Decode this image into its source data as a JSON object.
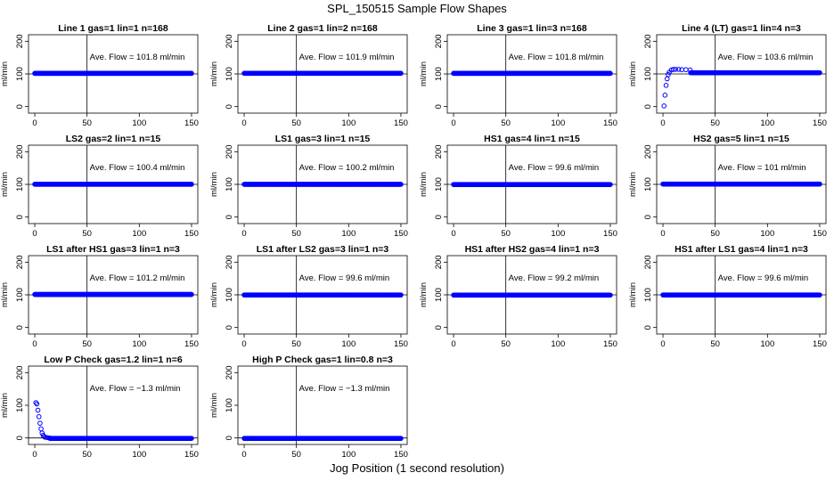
{
  "title": "SPL_150515  Sample Flow Shapes",
  "xlabel": "Jog Position (1 second resolution)",
  "ylabel": "ml/min",
  "colors": {
    "points": "#0000ff",
    "axes": "#000000"
  },
  "chart_data": [
    {
      "type": "scatter",
      "title": "Line 1 gas=1 lin=1 n=168",
      "annotation": "Ave. Flow = 101.8  ml/min",
      "mean": 101.8,
      "xlim": [
        0,
        150
      ],
      "ylim": [
        -20,
        220
      ],
      "xticks": [
        0,
        50,
        100,
        150
      ],
      "yticks": [
        0,
        100,
        200
      ],
      "refline_x": 50,
      "hline_y": 100,
      "start": []
    },
    {
      "type": "scatter",
      "title": "Line 2 gas=1 lin=2 n=168",
      "annotation": "Ave. Flow = 101.9  ml/min",
      "mean": 101.9,
      "xlim": [
        0,
        150
      ],
      "ylim": [
        -20,
        220
      ],
      "xticks": [
        0,
        50,
        100,
        150
      ],
      "yticks": [
        0,
        100,
        200
      ],
      "refline_x": 50,
      "hline_y": 100,
      "start": []
    },
    {
      "type": "scatter",
      "title": "Line 3 gas=1 lin=3 n=168",
      "annotation": "Ave. Flow = 101.8  ml/min",
      "mean": 101.8,
      "xlim": [
        0,
        150
      ],
      "ylim": [
        -20,
        220
      ],
      "xticks": [
        0,
        50,
        100,
        150
      ],
      "yticks": [
        0,
        100,
        200
      ],
      "refline_x": 50,
      "hline_y": 100,
      "start": []
    },
    {
      "type": "scatter",
      "title": "Line 4 (LT) gas=1 lin=4 n=3",
      "annotation": "Ave. Flow = 103.6  ml/min",
      "mean": 103.6,
      "xlim": [
        0,
        150
      ],
      "ylim": [
        -20,
        220
      ],
      "xticks": [
        0,
        50,
        100,
        150
      ],
      "yticks": [
        0,
        100,
        200
      ],
      "refline_x": 50,
      "hline_y": 100,
      "start": [
        [
          1,
          2
        ],
        [
          2,
          35
        ],
        [
          3,
          65
        ],
        [
          4,
          85
        ],
        [
          5,
          98
        ],
        [
          6,
          105
        ],
        [
          8,
          112
        ],
        [
          10,
          114
        ],
        [
          12,
          114
        ],
        [
          15,
          114
        ],
        [
          18,
          113
        ],
        [
          22,
          113
        ],
        [
          26,
          112
        ]
      ]
    },
    {
      "type": "scatter",
      "title": "LS2 gas=2 lin=1 n=15",
      "annotation": "Ave. Flow = 100.4  ml/min",
      "mean": 100.4,
      "xlim": [
        0,
        150
      ],
      "ylim": [
        -20,
        220
      ],
      "xticks": [
        0,
        50,
        100,
        150
      ],
      "yticks": [
        0,
        100,
        200
      ],
      "refline_x": 50,
      "hline_y": 100,
      "start": []
    },
    {
      "type": "scatter",
      "title": "LS1 gas=3 lin=1 n=15",
      "annotation": "Ave. Flow = 100.2  ml/min",
      "mean": 100.2,
      "xlim": [
        0,
        150
      ],
      "ylim": [
        -20,
        220
      ],
      "xticks": [
        0,
        50,
        100,
        150
      ],
      "yticks": [
        0,
        100,
        200
      ],
      "refline_x": 50,
      "hline_y": 100,
      "start": []
    },
    {
      "type": "scatter",
      "title": "HS1 gas=4 lin=1 n=15",
      "annotation": "Ave. Flow = 99.6  ml/min",
      "mean": 99.6,
      "xlim": [
        0,
        150
      ],
      "ylim": [
        -20,
        220
      ],
      "xticks": [
        0,
        50,
        100,
        150
      ],
      "yticks": [
        0,
        100,
        200
      ],
      "refline_x": 50,
      "hline_y": 100,
      "start": []
    },
    {
      "type": "scatter",
      "title": "HS2 gas=5 lin=1 n=15",
      "annotation": "Ave. Flow = 101  ml/min",
      "mean": 101,
      "xlim": [
        0,
        150
      ],
      "ylim": [
        -20,
        220
      ],
      "xticks": [
        0,
        50,
        100,
        150
      ],
      "yticks": [
        0,
        100,
        200
      ],
      "refline_x": 50,
      "hline_y": 100,
      "start": []
    },
    {
      "type": "scatter",
      "title": "LS1 after HS1 gas=3 lin=1 n=3",
      "annotation": "Ave. Flow = 101.2  ml/min",
      "mean": 101.2,
      "xlim": [
        0,
        150
      ],
      "ylim": [
        -20,
        220
      ],
      "xticks": [
        0,
        50,
        100,
        150
      ],
      "yticks": [
        0,
        100,
        200
      ],
      "refline_x": 50,
      "hline_y": 100,
      "start": []
    },
    {
      "type": "scatter",
      "title": "LS1 after LS2 gas=3 lin=1 n=3",
      "annotation": "Ave. Flow = 99.6  ml/min",
      "mean": 99.6,
      "xlim": [
        0,
        150
      ],
      "ylim": [
        -20,
        220
      ],
      "xticks": [
        0,
        50,
        100,
        150
      ],
      "yticks": [
        0,
        100,
        200
      ],
      "refline_x": 50,
      "hline_y": 100,
      "start": []
    },
    {
      "type": "scatter",
      "title": "HS1 after HS2 gas=4 lin=1 n=3",
      "annotation": "Ave. Flow = 99.2  ml/min",
      "mean": 99.2,
      "xlim": [
        0,
        150
      ],
      "ylim": [
        -20,
        220
      ],
      "xticks": [
        0,
        50,
        100,
        150
      ],
      "yticks": [
        0,
        100,
        200
      ],
      "refline_x": 50,
      "hline_y": 100,
      "start": []
    },
    {
      "type": "scatter",
      "title": "HS1 after LS1 gas=4 lin=1 n=3",
      "annotation": "Ave. Flow = 99.6  ml/min",
      "mean": 99.6,
      "xlim": [
        0,
        150
      ],
      "ylim": [
        -20,
        220
      ],
      "xticks": [
        0,
        50,
        100,
        150
      ],
      "yticks": [
        0,
        100,
        200
      ],
      "refline_x": 50,
      "hline_y": 100,
      "start": []
    },
    {
      "type": "scatter",
      "title": "Low P Check gas=1.2 lin=1 n=6",
      "annotation": "Ave. Flow = −1.3  ml/min",
      "mean": -1.3,
      "xlim": [
        0,
        150
      ],
      "ylim": [
        -20,
        220
      ],
      "xticks": [
        0,
        50,
        100,
        150
      ],
      "yticks": [
        0,
        100,
        200
      ],
      "refline_x": 50,
      "hline_y": 0,
      "start": [
        [
          1,
          108
        ],
        [
          2,
          104
        ],
        [
          3,
          85
        ],
        [
          4,
          65
        ],
        [
          5,
          45
        ],
        [
          6,
          28
        ],
        [
          7,
          15
        ],
        [
          8,
          8
        ],
        [
          9,
          4
        ],
        [
          10,
          2
        ],
        [
          12,
          1
        ],
        [
          14,
          0
        ]
      ]
    },
    {
      "type": "scatter",
      "title": "High P Check gas=1 lin=0.8 n=3",
      "annotation": "Ave. Flow = −1.3  ml/min",
      "mean": -1.3,
      "xlim": [
        0,
        150
      ],
      "ylim": [
        -20,
        220
      ],
      "xticks": [
        0,
        50,
        100,
        150
      ],
      "yticks": [
        0,
        100,
        200
      ],
      "refline_x": 50,
      "hline_y": 0,
      "start": []
    }
  ]
}
